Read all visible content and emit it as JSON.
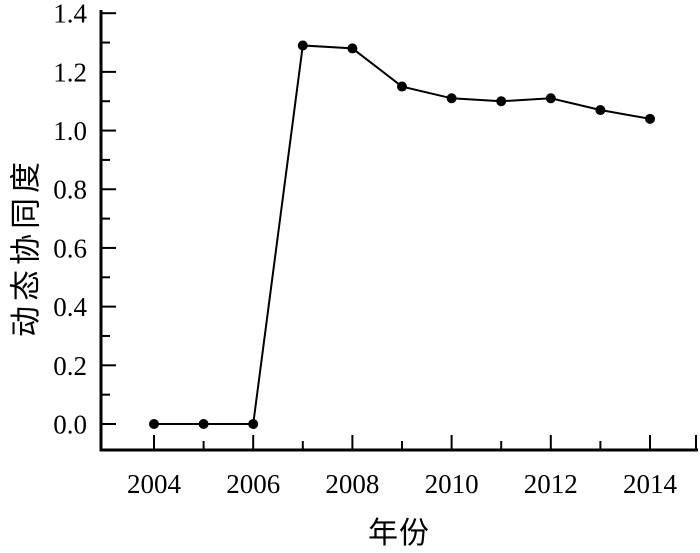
{
  "figure": {
    "background_color": "#ffffff",
    "foreground_color": "#000000"
  },
  "chart_data": {
    "type": "line",
    "title": "",
    "xlabel": "年份",
    "ylabel": "动态协同度",
    "x": [
      2004,
      2005,
      2006,
      2007,
      2008,
      2009,
      2010,
      2011,
      2012,
      2013,
      2014
    ],
    "series": [
      {
        "name": "动态协同度",
        "values": [
          0.0,
          0.0,
          0.0,
          1.29,
          1.28,
          1.15,
          1.11,
          1.1,
          1.11,
          1.07,
          1.04
        ],
        "color": "#000000",
        "marker": "filled-circle",
        "line_style": "solid"
      }
    ],
    "xlim": [
      2003,
      2015
    ],
    "ylim": [
      0,
      1.4
    ],
    "x_major_ticks": [
      2004,
      2006,
      2008,
      2010,
      2012,
      2014
    ],
    "x_tick_labels": [
      "2004",
      "2006",
      "2008",
      "2010",
      "2012",
      "2014"
    ],
    "x_minor_ticks": [
      2005,
      2007,
      2009,
      2011,
      2013
    ],
    "y_major_ticks": [
      0.0,
      0.2,
      0.4,
      0.6,
      0.8,
      1.0,
      1.2,
      1.4
    ],
    "y_tick_labels": [
      "0.0",
      "0.2",
      "0.4",
      "0.6",
      "0.8",
      "1.0",
      "1.2",
      "1.4"
    ],
    "y_minor_ticks": [
      0.1,
      0.3,
      0.5,
      0.7,
      0.9,
      1.1,
      1.3
    ],
    "grid": false,
    "legend_position": "none"
  }
}
